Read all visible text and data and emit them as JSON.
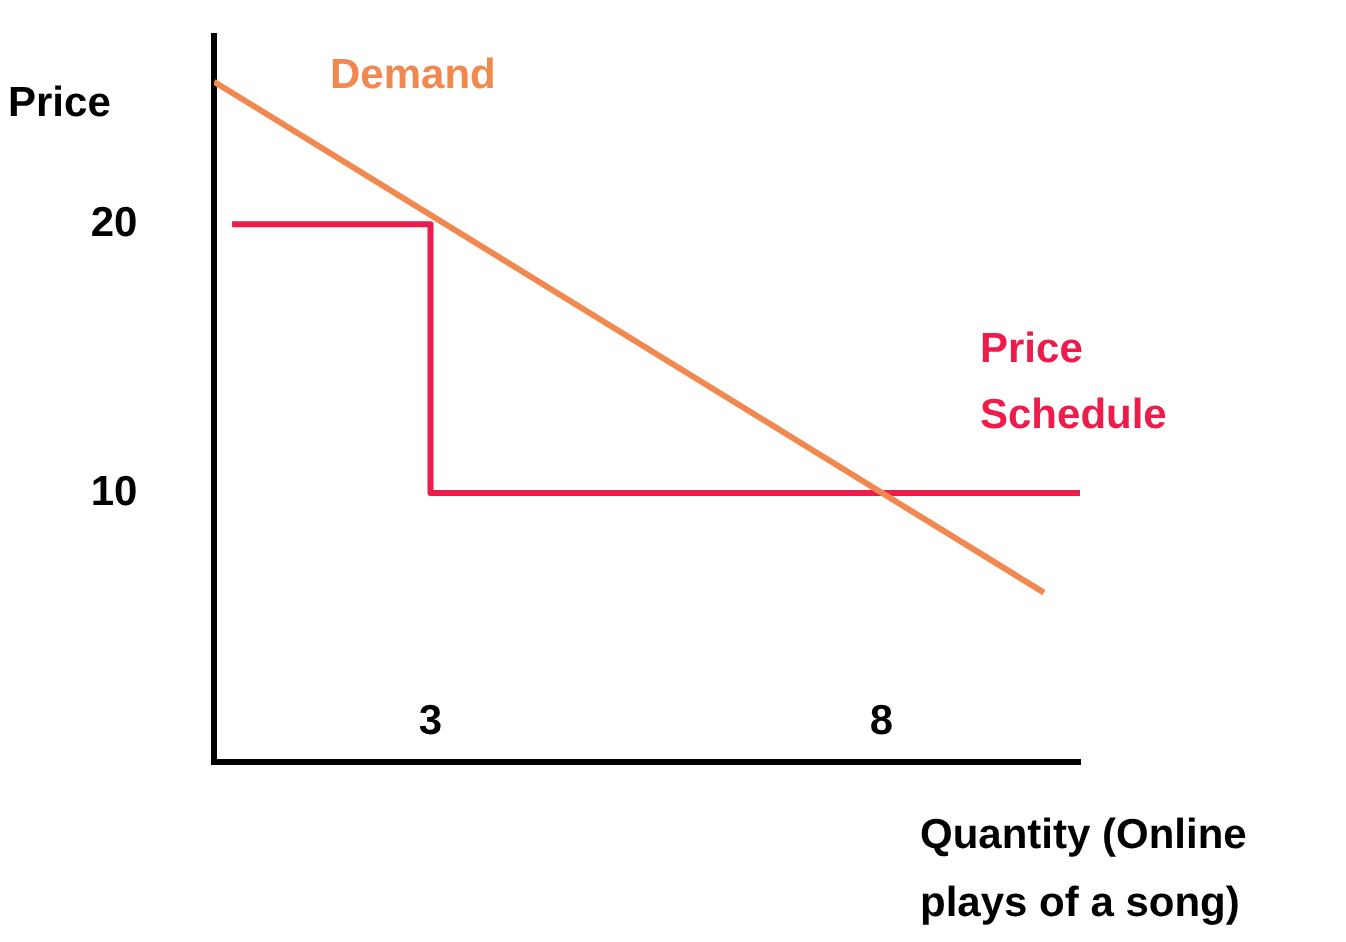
{
  "chart_data": {
    "type": "line",
    "xlabel": "Quantity (Online plays of a song)",
    "ylabel": "Price",
    "xlim": [
      0.6,
      10.2
    ],
    "xticks": [
      3,
      8
    ],
    "ylim": [
      0,
      27
    ],
    "yticks": [
      10,
      20
    ],
    "series": [
      {
        "name": "Demand",
        "color": "#f0884f",
        "x": [
          0.6,
          9.8
        ],
        "values": [
          25.3,
          6.3
        ]
      },
      {
        "name": "Price Schedule",
        "color": "#ee1c4b",
        "x": [
          0.8,
          3,
          3,
          10.2
        ],
        "values": [
          20,
          20,
          10,
          10
        ]
      }
    ],
    "grid": false,
    "legend": false,
    "marker": "none",
    "line_style": "solid"
  }
}
